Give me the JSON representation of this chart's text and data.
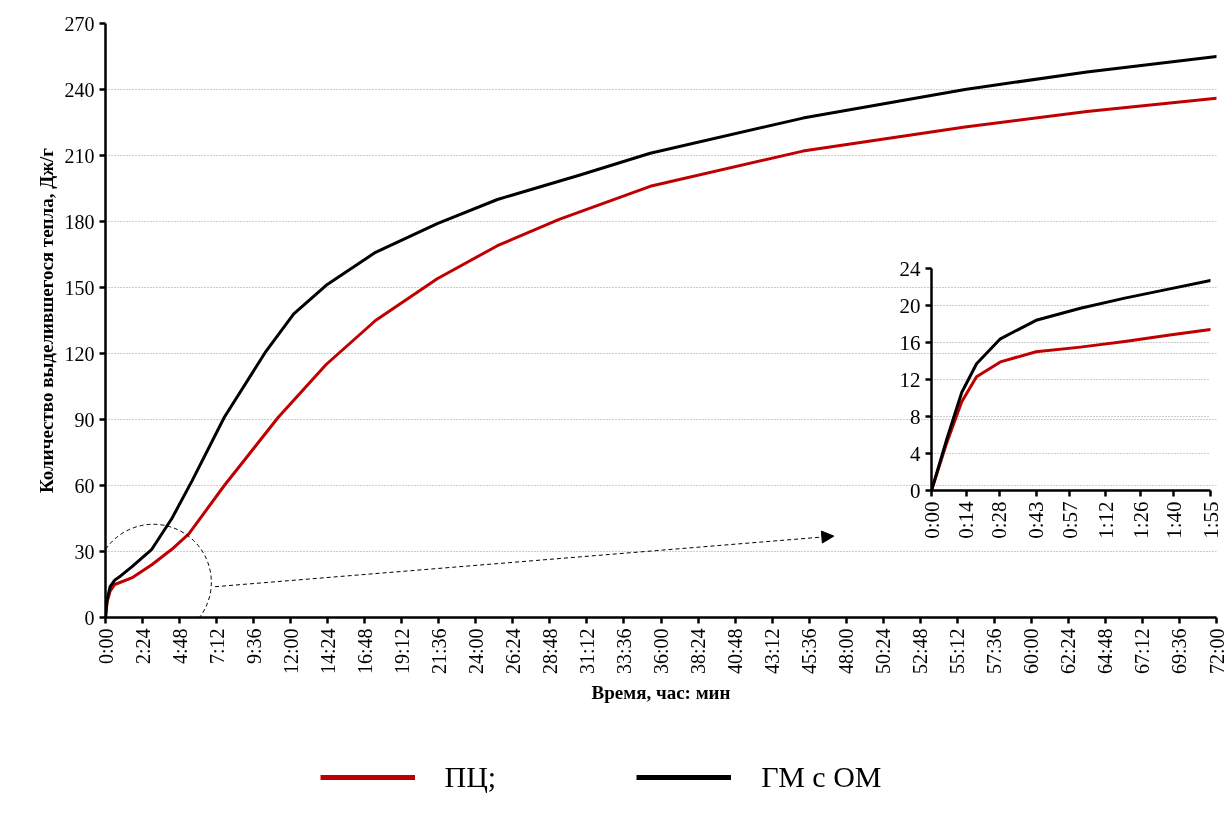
{
  "chart_data": [
    {
      "type": "line",
      "xlabel": "Время, час: мин",
      "ylabel": "Количество выделившегося тепла, Дж/г",
      "xlim": [
        0,
        72
      ],
      "ylim": [
        0,
        270
      ],
      "xticks": [
        {
          "value": 0,
          "label": "0:00"
        },
        {
          "value": 2.4,
          "label": "2:24"
        },
        {
          "value": 4.8,
          "label": "4:48"
        },
        {
          "value": 7.2,
          "label": "7:12"
        },
        {
          "value": 9.6,
          "label": "9:36"
        },
        {
          "value": 12,
          "label": "12:00"
        },
        {
          "value": 14.4,
          "label": "14:24"
        },
        {
          "value": 16.8,
          "label": "16:48"
        },
        {
          "value": 19.2,
          "label": "19:12"
        },
        {
          "value": 21.6,
          "label": "21:36"
        },
        {
          "value": 24,
          "label": "24:00"
        },
        {
          "value": 26.4,
          "label": "26:24"
        },
        {
          "value": 28.8,
          "label": "28:48"
        },
        {
          "value": 31.2,
          "label": "31:12"
        },
        {
          "value": 33.6,
          "label": "33:36"
        },
        {
          "value": 36,
          "label": "36:00"
        },
        {
          "value": 38.4,
          "label": "38:24"
        },
        {
          "value": 40.8,
          "label": "40:48"
        },
        {
          "value": 43.2,
          "label": "43:12"
        },
        {
          "value": 45.6,
          "label": "45:36"
        },
        {
          "value": 48,
          "label": "48:00"
        },
        {
          "value": 50.4,
          "label": "50:24"
        },
        {
          "value": 52.8,
          "label": "52:48"
        },
        {
          "value": 55.2,
          "label": "55:12"
        },
        {
          "value": 57.6,
          "label": "57:36"
        },
        {
          "value": 60,
          "label": "60:00"
        },
        {
          "value": 62.4,
          "label": "62:24"
        },
        {
          "value": 64.8,
          "label": "64:48"
        },
        {
          "value": 67.2,
          "label": "67:12"
        },
        {
          "value": 69.6,
          "label": "69:36"
        },
        {
          "value": 72,
          "label": "72:00"
        }
      ],
      "yticks": [
        0,
        30,
        60,
        90,
        120,
        150,
        180,
        210,
        240,
        270
      ],
      "grid": "y",
      "legend": "bottom",
      "line_style": "solid",
      "series": [
        {
          "name": "ПЦ;",
          "color": "#c00000",
          "x": [
            0,
            0.1,
            0.3,
            0.6,
            1.7,
            3,
            4.3,
            5.4,
            7.7,
            11.2,
            14.3,
            17.5,
            21.5,
            25.4,
            29.4,
            35.3,
            45.2,
            55.7,
            63.6,
            72
          ],
          "values": [
            0,
            7,
            12,
            15,
            18,
            24,
            31,
            38,
            60,
            91,
            115,
            135,
            154,
            169,
            181,
            196,
            212,
            223,
            230,
            236
          ]
        },
        {
          "name": "ГМ с ОМ",
          "color": "#000000",
          "x": [
            0,
            0.1,
            0.3,
            0.6,
            1,
            1.7,
            3,
            4.3,
            5.6,
            7.7,
            10.4,
            12.2,
            14.3,
            17.5,
            21.5,
            25.4,
            30.7,
            35.3,
            45.2,
            55.7,
            63.6,
            72
          ],
          "values": [
            0,
            8,
            14,
            17,
            19,
            23,
            31,
            45,
            62,
            91,
            121,
            138,
            151,
            166,
            179,
            190,
            201,
            211,
            227,
            240,
            248,
            255
          ]
        }
      ]
    },
    {
      "type": "line",
      "xlim": [
        0,
        1.92
      ],
      "ylim": [
        0,
        24
      ],
      "xticks": [
        {
          "value": 0,
          "label": "0:00"
        },
        {
          "value": 0.24,
          "label": "0:14"
        },
        {
          "value": 0.4667,
          "label": "0:28"
        },
        {
          "value": 0.72,
          "label": "0:43"
        },
        {
          "value": 0.95,
          "label": "0:57"
        },
        {
          "value": 1.2,
          "label": "1:12"
        },
        {
          "value": 1.44,
          "label": "1:26"
        },
        {
          "value": 1.6667,
          "label": "1:40"
        },
        {
          "value": 1.92,
          "label": "1:55"
        }
      ],
      "yticks": [
        0,
        4,
        8,
        12,
        16,
        20,
        24
      ],
      "grid": "y",
      "line_style": "solid",
      "series": [
        {
          "color": "#c00000",
          "x": [
            0,
            0.106,
            0.208,
            0.31,
            0.474,
            0.72,
            1.025,
            1.33,
            1.64,
            1.92
          ],
          "values": [
            0,
            5.2,
            9.6,
            12.3,
            13.9,
            15.0,
            15.5,
            16.1,
            16.8,
            17.4
          ]
        },
        {
          "color": "#000000",
          "x": [
            0,
            0.106,
            0.208,
            0.31,
            0.474,
            0.72,
            1.025,
            1.33,
            1.64,
            1.92
          ],
          "values": [
            0,
            5.6,
            10.6,
            13.7,
            16.4,
            18.4,
            19.7,
            20.8,
            21.8,
            22.7
          ]
        }
      ]
    }
  ]
}
